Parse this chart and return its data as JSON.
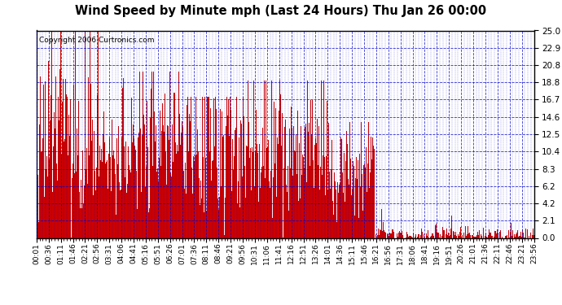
{
  "title": "Wind Speed by Minute mph (Last 24 Hours) Thu Jan 26 00:00",
  "copyright": "Copyright 2006 Curtronics.com",
  "ytick_values": [
    0.0,
    2.1,
    4.2,
    6.2,
    8.3,
    10.4,
    12.5,
    14.6,
    16.7,
    18.8,
    20.8,
    22.9,
    25.0
  ],
  "ymin": 0.0,
  "ymax": 25.0,
  "bg_color": "#ffffff",
  "plot_bg_color": "#ffffff",
  "bar_color": "#cc0000",
  "grid_color": "#0000cc",
  "title_color": "#000000",
  "border_color": "#000000",
  "x_tick_labels": [
    "00:01",
    "00:36",
    "01:11",
    "01:46",
    "02:21",
    "02:56",
    "03:31",
    "04:06",
    "04:41",
    "05:16",
    "05:51",
    "06:26",
    "07:01",
    "07:36",
    "08:11",
    "08:46",
    "09:21",
    "09:56",
    "10:31",
    "11:06",
    "11:41",
    "12:16",
    "12:51",
    "13:26",
    "14:01",
    "14:36",
    "15:11",
    "15:46",
    "16:21",
    "16:56",
    "17:31",
    "18:06",
    "18:41",
    "19:16",
    "19:51",
    "20:26",
    "21:01",
    "21:36",
    "22:11",
    "22:46",
    "23:21",
    "23:56"
  ]
}
